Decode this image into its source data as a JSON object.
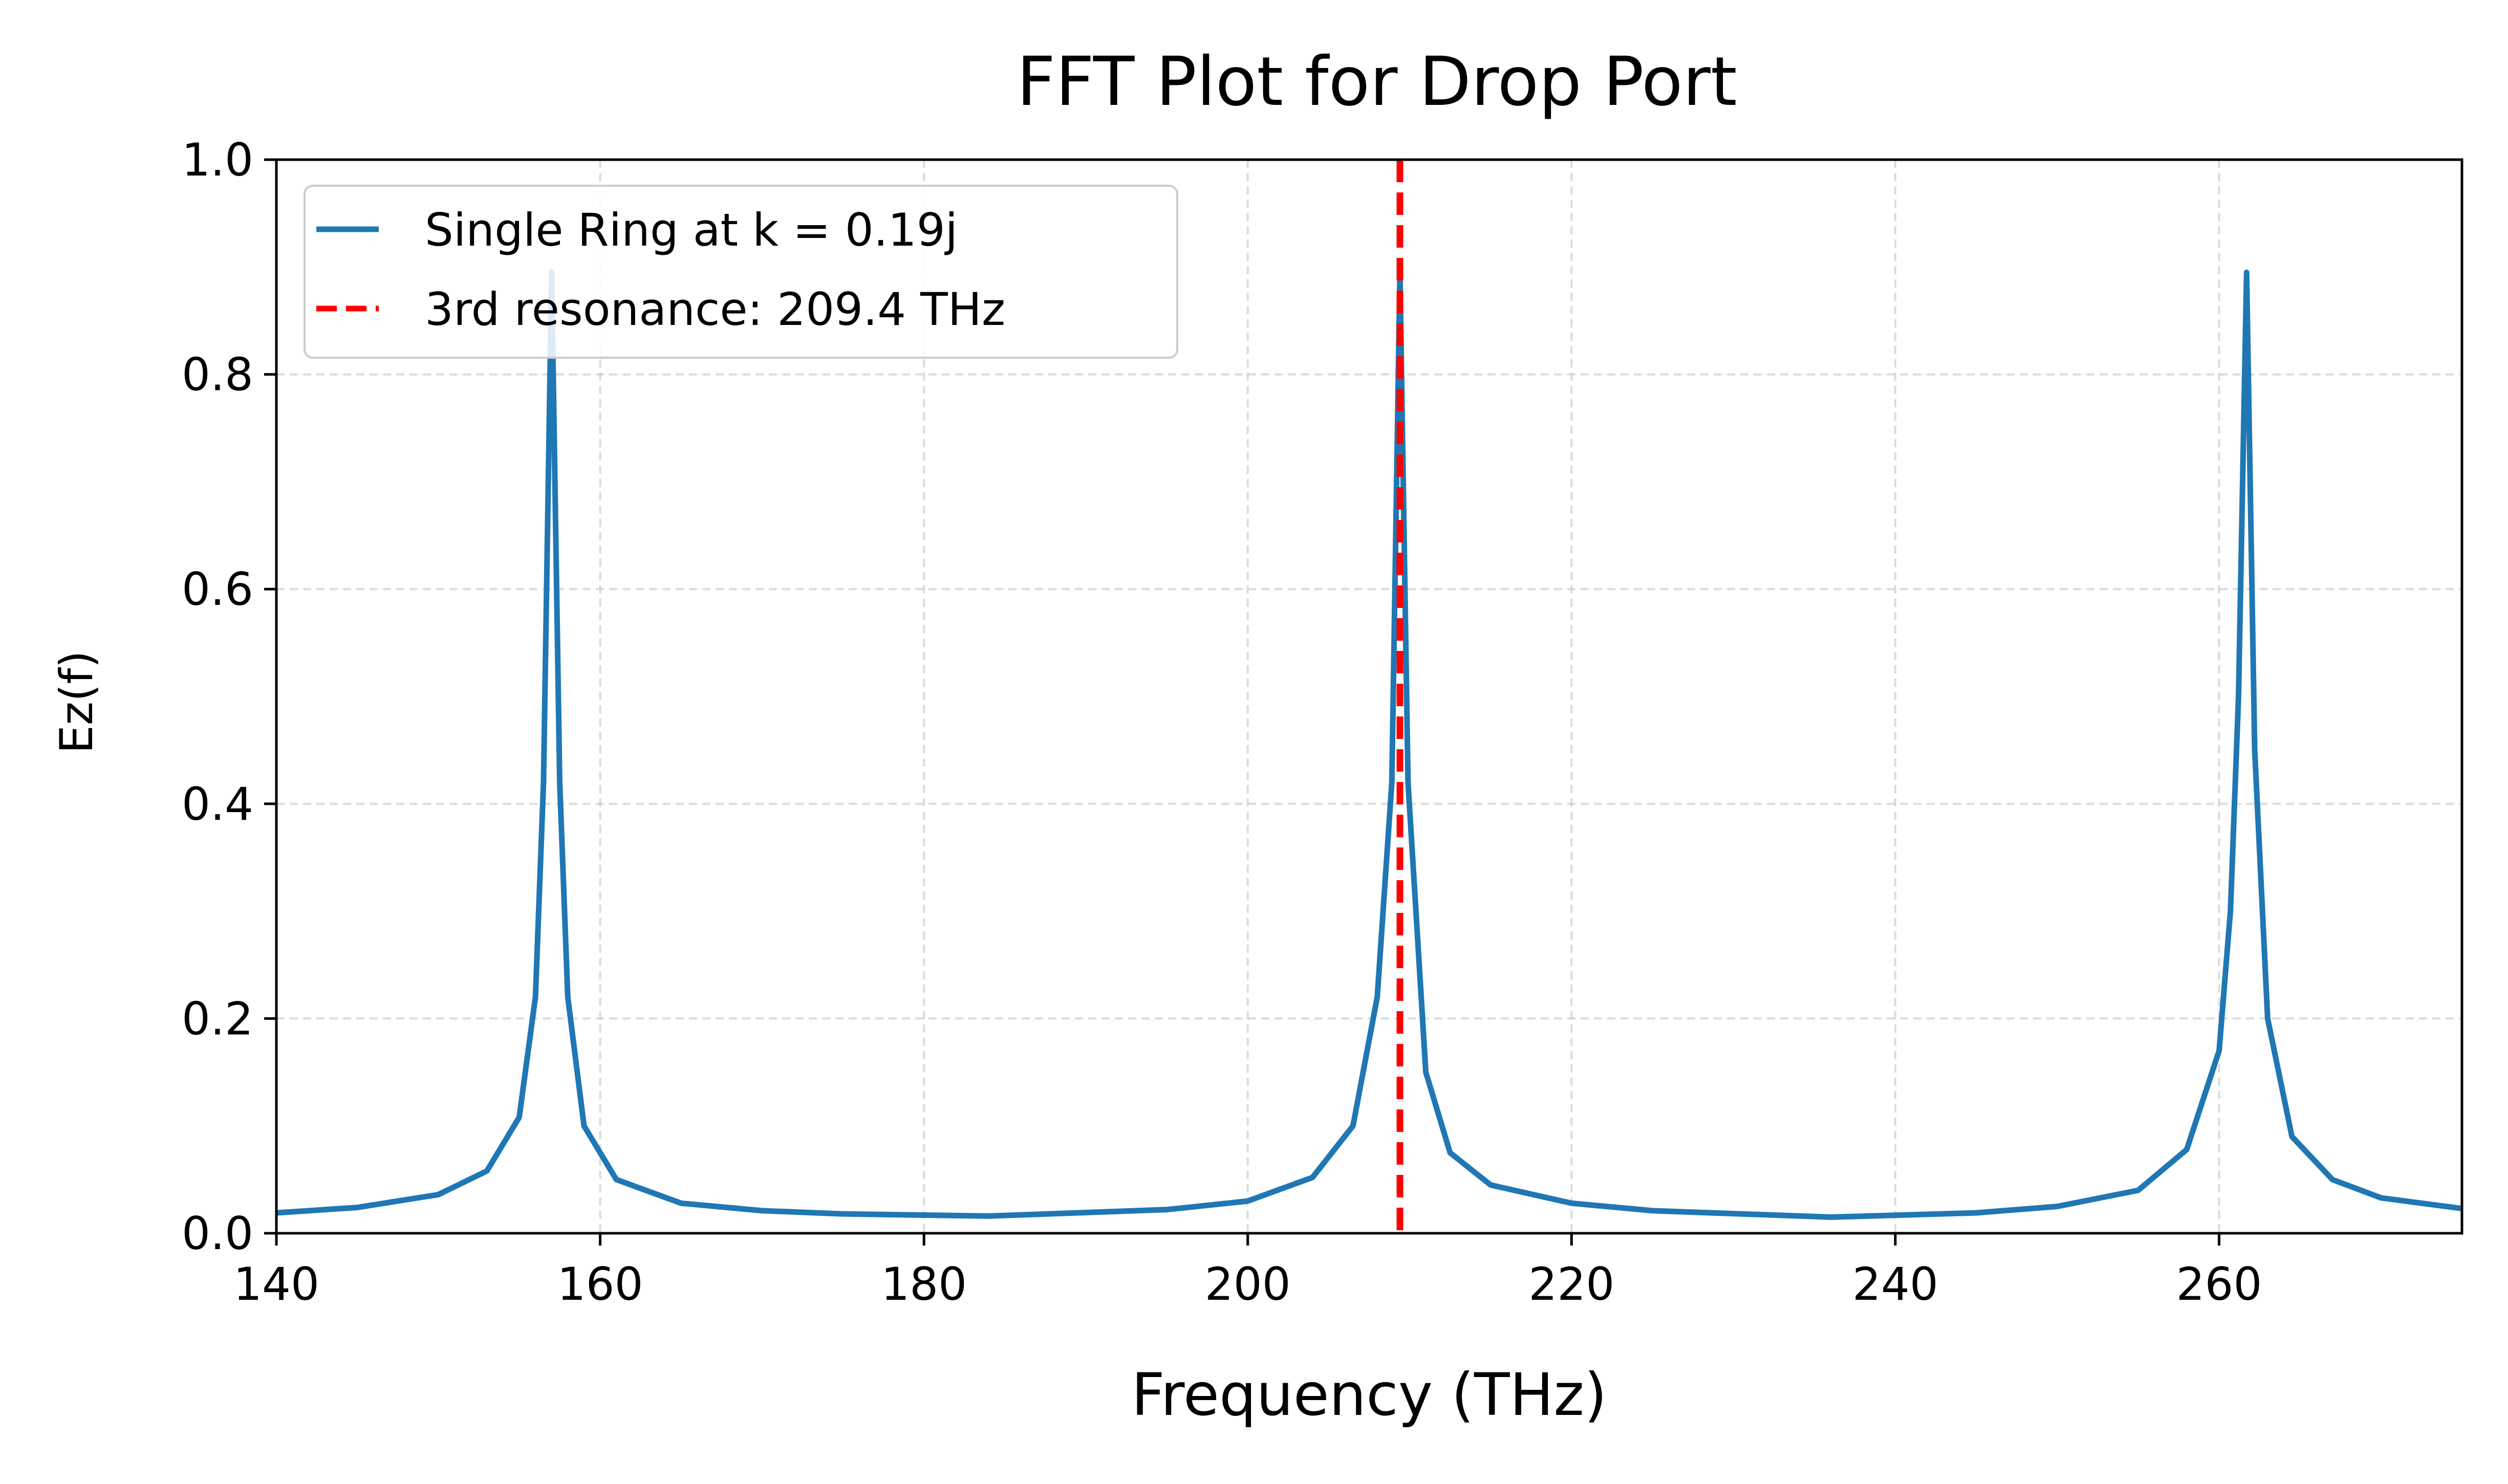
{
  "chart_data": {
    "type": "line",
    "title": "FFT Plot for Drop Port",
    "xlabel": "Frequency (THz)",
    "ylabel": "Ez(f)",
    "xlim": [
      140,
      275
    ],
    "ylim": [
      0.0,
      1.0
    ],
    "xticks": [
      140,
      160,
      180,
      200,
      220,
      240,
      260
    ],
    "xtick_labels": [
      "140",
      "160",
      "180",
      "200",
      "220",
      "240",
      "260"
    ],
    "yticks": [
      0.0,
      0.2,
      0.4,
      0.6,
      0.8,
      1.0
    ],
    "ytick_labels": [
      "0.0",
      "0.2",
      "0.4",
      "0.6",
      "0.8",
      "1.0"
    ],
    "grid": true,
    "legend_position": "top-left",
    "series": [
      {
        "name": "Single Ring at k = 0.19j",
        "color": "#1f77b4",
        "style": "solid",
        "peaks_x": [
          157.0,
          209.4,
          261.7
        ],
        "peak_y": 0.895,
        "floor_y": 0.015,
        "x": [
          140,
          145,
          150,
          153,
          155,
          156,
          156.5,
          157.0,
          157.5,
          158,
          159,
          161,
          165,
          170,
          175,
          184,
          195,
          200,
          204,
          206.5,
          208,
          208.9,
          209.4,
          209.9,
          211,
          212.5,
          215,
          220,
          225,
          236,
          245,
          250,
          255,
          258,
          260,
          260.7,
          261.2,
          261.7,
          262.2,
          263,
          264.5,
          267,
          270,
          275
        ],
        "y": [
          0.019,
          0.024,
          0.036,
          0.058,
          0.108,
          0.22,
          0.42,
          0.895,
          0.42,
          0.22,
          0.1,
          0.05,
          0.028,
          0.021,
          0.018,
          0.016,
          0.022,
          0.03,
          0.052,
          0.1,
          0.22,
          0.42,
          0.895,
          0.42,
          0.15,
          0.075,
          0.045,
          0.028,
          0.021,
          0.015,
          0.019,
          0.025,
          0.04,
          0.078,
          0.17,
          0.3,
          0.5,
          0.895,
          0.45,
          0.2,
          0.09,
          0.05,
          0.033,
          0.023
        ]
      },
      {
        "name": "3rd resonance: 209.4 THz",
        "color": "#ff0000",
        "style": "dashed",
        "vertical_x": 209.4
      }
    ]
  }
}
